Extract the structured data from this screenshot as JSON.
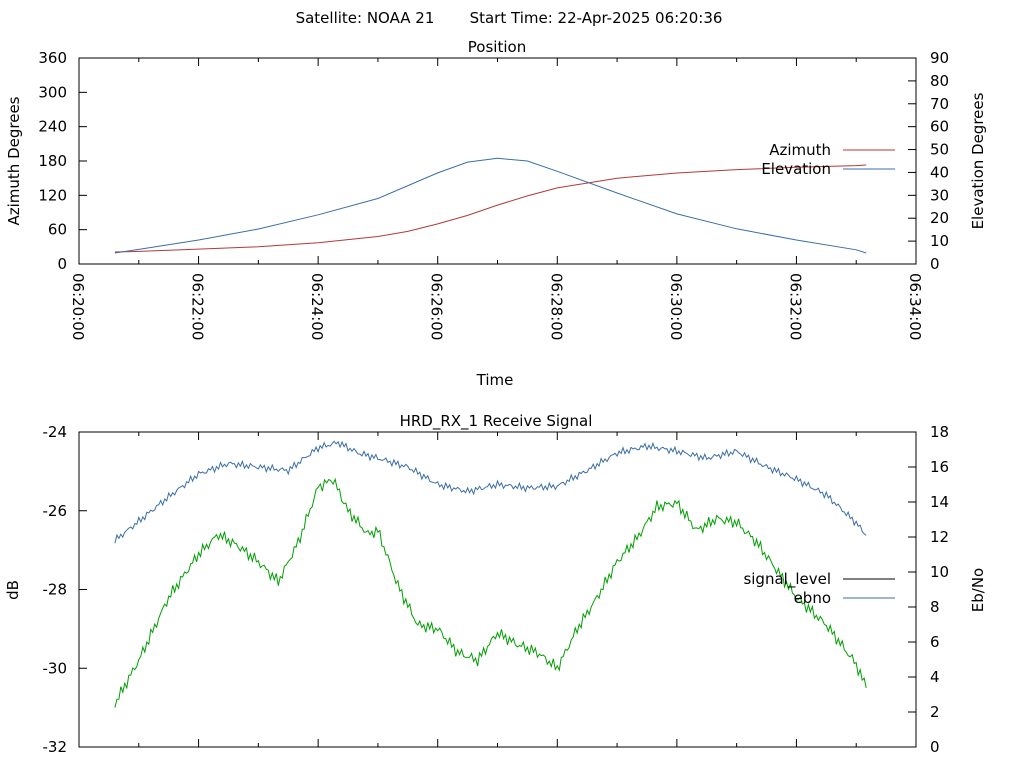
{
  "header": {
    "satellite": "Satellite: NOAA 21",
    "start_time": "Start Time: 22-Apr-2025 06:20:36"
  },
  "chart_data": [
    {
      "type": "line",
      "title": "Position",
      "xlabel": "Time",
      "ylabel": "Azimuth Degrees",
      "y2label": "Elevation Degrees",
      "xlim": [
        "06:20:00",
        "06:34:00"
      ],
      "ylim": [
        0,
        360
      ],
      "y2lim": [
        0,
        90
      ],
      "x_ticks": [
        "06:20:00",
        "06:22:00",
        "06:24:00",
        "06:26:00",
        "06:28:00",
        "06:30:00",
        "06:32:00",
        "06:34:00"
      ],
      "y_ticks": [
        "0",
        "60",
        "120",
        "180",
        "240",
        "300",
        "360"
      ],
      "y2_ticks": [
        "0",
        "10",
        "20",
        "30",
        "40",
        "50",
        "60",
        "70",
        "80",
        "90"
      ],
      "legend_position": "right",
      "series": [
        {
          "name": "Azimuth",
          "axis": "left",
          "color": "#b03a3a",
          "x": [
            "06:20:36",
            "06:21:00",
            "06:22:00",
            "06:23:00",
            "06:24:00",
            "06:25:00",
            "06:25:30",
            "06:26:00",
            "06:26:30",
            "06:27:00",
            "06:27:30",
            "06:28:00",
            "06:29:00",
            "06:30:00",
            "06:31:00",
            "06:32:00",
            "06:33:00",
            "06:33:10"
          ],
          "y": [
            21,
            22,
            26,
            30,
            37,
            48,
            57,
            70,
            85,
            103,
            119,
            133,
            150,
            159,
            165,
            169,
            172,
            173
          ]
        },
        {
          "name": "Elevation",
          "axis": "right",
          "color": "#3a6ea8",
          "x": [
            "06:20:36",
            "06:21:00",
            "06:22:00",
            "06:23:00",
            "06:24:00",
            "06:25:00",
            "06:26:00",
            "06:26:30",
            "06:27:00",
            "06:27:30",
            "06:28:00",
            "06:29:00",
            "06:30:00",
            "06:31:00",
            "06:32:00",
            "06:33:00",
            "06:33:10"
          ],
          "y": [
            4.8,
            6.4,
            10.5,
            15.3,
            21.5,
            28.6,
            39.8,
            44.5,
            46.2,
            45.0,
            40.5,
            31.0,
            21.9,
            15.4,
            10.5,
            6.2,
            4.8
          ]
        }
      ]
    },
    {
      "type": "line",
      "title": "HRD_RX_1 Receive Signal",
      "xlabel": "",
      "ylabel": "dB",
      "y2label": "Eb/No",
      "xlim": [
        "06:20:00",
        "06:34:00"
      ],
      "ylim": [
        -32,
        -24
      ],
      "y2lim": [
        0,
        18
      ],
      "y_ticks": [
        "-24",
        "-26",
        "-28",
        "-30",
        "-32"
      ],
      "y2_ticks": [
        "0",
        "2",
        "4",
        "6",
        "8",
        "10",
        "12",
        "14",
        "16",
        "18"
      ],
      "legend_position": "right",
      "series": [
        {
          "name": "signal_level",
          "axis": "left",
          "color": "#00a000",
          "x": [
            "06:20:36",
            "06:21:00",
            "06:21:30",
            "06:22:00",
            "06:22:20",
            "06:22:40",
            "06:23:00",
            "06:23:20",
            "06:23:40",
            "06:24:00",
            "06:24:15",
            "06:24:30",
            "06:24:50",
            "06:25:00",
            "06:25:20",
            "06:25:40",
            "06:26:00",
            "06:26:20",
            "06:26:40",
            "06:27:00",
            "06:27:20",
            "06:27:40",
            "06:28:00",
            "06:28:20",
            "06:28:40",
            "06:29:00",
            "06:29:20",
            "06:29:40",
            "06:30:00",
            "06:30:20",
            "06:30:40",
            "06:31:00",
            "06:31:20",
            "06:31:40",
            "06:32:00",
            "06:32:30",
            "06:33:00",
            "06:33:10"
          ],
          "y": [
            -30.9,
            -29.8,
            -28.2,
            -27.1,
            -26.6,
            -26.9,
            -27.3,
            -27.8,
            -26.8,
            -25.4,
            -25.2,
            -26.0,
            -26.6,
            -26.5,
            -27.9,
            -28.9,
            -29.0,
            -29.6,
            -29.8,
            -29.1,
            -29.4,
            -29.6,
            -30.0,
            -29.0,
            -28.2,
            -27.3,
            -26.7,
            -25.9,
            -25.8,
            -26.5,
            -26.2,
            -26.3,
            -26.8,
            -27.5,
            -28.2,
            -28.9,
            -29.9,
            -30.5
          ]
        },
        {
          "name": "ebno",
          "axis": "right",
          "color": "#3a6ea8",
          "x": [
            "06:20:36",
            "06:21:00",
            "06:21:30",
            "06:22:00",
            "06:22:30",
            "06:23:00",
            "06:23:30",
            "06:24:00",
            "06:24:20",
            "06:24:40",
            "06:25:00",
            "06:25:30",
            "06:26:00",
            "06:26:30",
            "06:27:00",
            "06:27:30",
            "06:28:00",
            "06:28:30",
            "06:29:00",
            "06:29:30",
            "06:30:00",
            "06:30:30",
            "06:31:00",
            "06:31:30",
            "06:32:00",
            "06:32:30",
            "06:33:00",
            "06:33:10"
          ],
          "y": [
            11.8,
            12.9,
            14.3,
            15.6,
            16.2,
            16.0,
            15.8,
            17.1,
            17.4,
            16.8,
            16.5,
            16.0,
            15.0,
            14.6,
            15.0,
            14.8,
            14.9,
            15.8,
            16.8,
            17.2,
            16.9,
            16.5,
            16.9,
            16.0,
            15.3,
            14.4,
            12.8,
            12.1
          ]
        }
      ]
    }
  ]
}
